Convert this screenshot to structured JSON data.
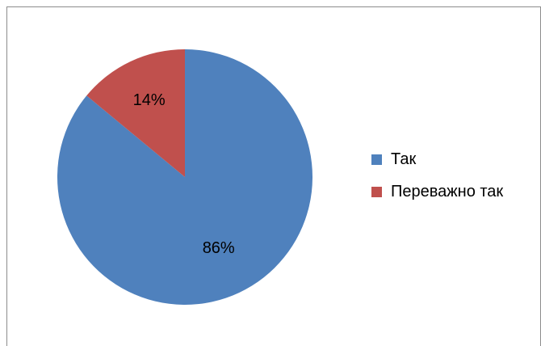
{
  "chart_data": {
    "type": "pie",
    "categories": [
      "Так",
      "Переважно так"
    ],
    "values": [
      86,
      14
    ],
    "data_labels": [
      "86%",
      "14%"
    ],
    "colors": [
      "#4f81bd",
      "#c0504d"
    ],
    "start_angle_deg": 0,
    "direction": "clockwise",
    "legend": {
      "position": "right",
      "entries": [
        "Так",
        "Переважно так"
      ]
    }
  }
}
